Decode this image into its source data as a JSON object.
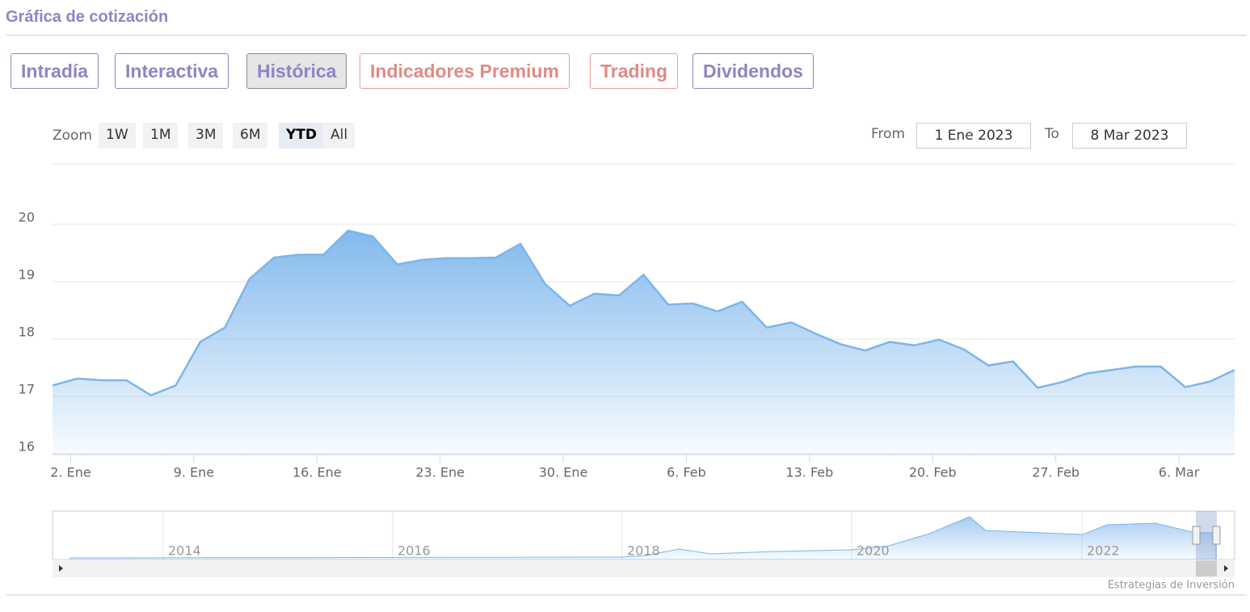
{
  "header": {
    "title": "Gráfica de cotización"
  },
  "tabs": [
    "Intradía",
    "Interactiva",
    "Histórica",
    "Indicadores Premium",
    "Trading",
    "Dividendos"
  ],
  "zoom": {
    "label": "Zoom",
    "buttons": [
      "1W",
      "1M",
      "3M",
      "6M",
      "YTD",
      "All"
    ]
  },
  "range": {
    "from_label": "From",
    "from": "1 Ene 2023",
    "to_label": "To",
    "to": "8 Mar 2023"
  },
  "chart_data": {
    "type": "area",
    "color": "#7cb5ec",
    "grid": true,
    "categories": [
      null,
      "2. Ene",
      null,
      null,
      null,
      null,
      "9. Ene",
      null,
      null,
      null,
      null,
      "16. Ene",
      null,
      null,
      null,
      null,
      "23. Ene",
      null,
      null,
      null,
      null,
      "30. Ene",
      null,
      null,
      null,
      null,
      "6. Feb",
      null,
      null,
      null,
      null,
      "13. Feb",
      null,
      null,
      null,
      null,
      "20. Feb",
      null,
      null,
      null,
      null,
      "27. Feb",
      null,
      null,
      null,
      null,
      "6. Mar",
      null,
      null
    ],
    "values": [
      17.19,
      17.31,
      17.28,
      17.28,
      17.02,
      17.19,
      17.95,
      18.2,
      19.05,
      19.42,
      19.47,
      19.47,
      19.89,
      19.79,
      19.3,
      19.38,
      19.41,
      19.41,
      19.42,
      19.66,
      18.96,
      18.58,
      18.79,
      18.76,
      19.12,
      18.6,
      18.62,
      18.48,
      18.65,
      18.2,
      18.29,
      18.09,
      17.91,
      17.8,
      17.95,
      17.89,
      17.99,
      17.82,
      17.54,
      17.61,
      17.15,
      17.25,
      17.4,
      17.46,
      17.52,
      17.52,
      17.16,
      17.26,
      17.46
    ],
    "ylim": [
      16,
      21
    ],
    "yticks": [
      16,
      17,
      18,
      19,
      20
    ]
  },
  "navigator": {
    "labels": [
      "2014",
      "2016",
      "2018",
      "2020",
      "2022"
    ]
  },
  "credit": "Estrategias de Inversión"
}
